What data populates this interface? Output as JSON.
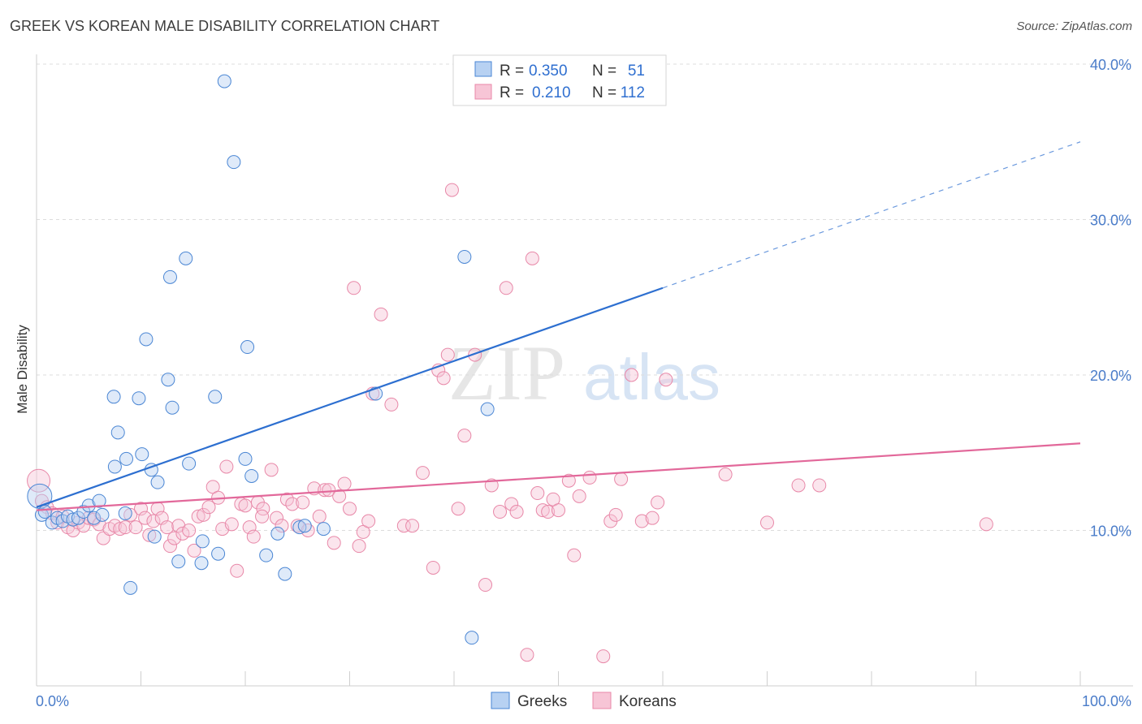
{
  "title": "GREEK VS KOREAN MALE DISABILITY CORRELATION CHART",
  "source": "Source: ZipAtlas.com",
  "watermark": {
    "zip": "ZIP",
    "atlas": "atlas"
  },
  "colors": {
    "greeks": "#4a86d4",
    "greeks_fill": "#b7d1f2",
    "greeks_line": "#2d6fd0",
    "koreans": "#e888a8",
    "koreans_fill": "#f7c5d6",
    "koreans_line": "#e2689a",
    "tick_text": "#4a7cc9",
    "grid": "#dcdcdc"
  },
  "legend_top": {
    "rows": [
      {
        "r_label": "R =",
        "r_value": "0.350",
        "n_label": "N =",
        "n_value": "51"
      },
      {
        "r_label": "R =",
        "r_value": "0.210",
        "n_label": "N =",
        "n_value": "112"
      }
    ]
  },
  "legend_bottom": {
    "greeks": "Greeks",
    "koreans": "Koreans"
  },
  "chart_data": {
    "type": "scatter",
    "title": "GREEK VS KOREAN MALE DISABILITY CORRELATION CHART",
    "xlabel": "",
    "ylabel": "Male Disability",
    "xlim": [
      0,
      100
    ],
    "ylim": [
      0,
      40.8
    ],
    "x_tick_labels": [
      "0.0%",
      "100.0%"
    ],
    "y_ticks": [
      10,
      20,
      30,
      40
    ],
    "y_tick_labels": [
      "10.0%",
      "20.0%",
      "30.0%",
      "40.0%"
    ],
    "grid": true,
    "legend_position": "top-center",
    "series": [
      {
        "name": "Greeks",
        "R": 0.35,
        "N": 51,
        "trend": {
          "x0": 0,
          "y0": 11.5,
          "x1": 60,
          "y1": 25.6,
          "dashed_to_x": 100,
          "dashed_to_y": 35.0
        },
        "points": [
          [
            0.3,
            12.2
          ],
          [
            0.5,
            11.0
          ],
          [
            0.8,
            11.2
          ],
          [
            1.5,
            10.5
          ],
          [
            2.0,
            10.8
          ],
          [
            2.5,
            10.6
          ],
          [
            3.0,
            10.9
          ],
          [
            3.5,
            10.7
          ],
          [
            4.0,
            10.8
          ],
          [
            4.5,
            11.2
          ],
          [
            5.0,
            11.6
          ],
          [
            5.5,
            10.8
          ],
          [
            6.0,
            11.9
          ],
          [
            6.3,
            11.0
          ],
          [
            7.4,
            18.6
          ],
          [
            7.5,
            14.1
          ],
          [
            7.8,
            16.3
          ],
          [
            8.5,
            11.1
          ],
          [
            8.6,
            14.6
          ],
          [
            9.0,
            6.3
          ],
          [
            9.8,
            18.5
          ],
          [
            10.1,
            14.9
          ],
          [
            10.5,
            22.3
          ],
          [
            11.0,
            13.9
          ],
          [
            11.3,
            9.6
          ],
          [
            11.6,
            13.1
          ],
          [
            12.6,
            19.7
          ],
          [
            12.8,
            26.3
          ],
          [
            13.0,
            17.9
          ],
          [
            13.6,
            8.0
          ],
          [
            14.3,
            27.5
          ],
          [
            14.6,
            14.3
          ],
          [
            15.9,
            9.3
          ],
          [
            15.8,
            7.9
          ],
          [
            17.1,
            18.6
          ],
          [
            17.4,
            8.5
          ],
          [
            18.0,
            38.9
          ],
          [
            18.9,
            33.7
          ],
          [
            20.0,
            14.6
          ],
          [
            20.2,
            21.8
          ],
          [
            20.6,
            13.5
          ],
          [
            22.0,
            8.4
          ],
          [
            23.1,
            9.8
          ],
          [
            23.8,
            7.2
          ],
          [
            25.2,
            10.2
          ],
          [
            25.7,
            10.3
          ],
          [
            27.5,
            10.1
          ],
          [
            32.5,
            18.8
          ],
          [
            41.0,
            27.6
          ],
          [
            41.7,
            3.1
          ],
          [
            43.2,
            17.8
          ]
        ]
      },
      {
        "name": "Koreans",
        "R": 0.21,
        "N": 112,
        "trend": {
          "x0": 0,
          "y0": 11.3,
          "x1": 100,
          "y1": 15.6
        },
        "points": [
          [
            0.2,
            13.2
          ],
          [
            0.5,
            11.9
          ],
          [
            1.0,
            11.5
          ],
          [
            1.5,
            11.1
          ],
          [
            2.0,
            10.5
          ],
          [
            2.5,
            10.9
          ],
          [
            3.0,
            10.2
          ],
          [
            3.5,
            10.0
          ],
          [
            4.0,
            10.5
          ],
          [
            4.5,
            10.3
          ],
          [
            5.0,
            10.8
          ],
          [
            5.5,
            10.7
          ],
          [
            6.0,
            10.4
          ],
          [
            6.4,
            9.5
          ],
          [
            7.0,
            10.1
          ],
          [
            7.5,
            10.3
          ],
          [
            8.0,
            10.1
          ],
          [
            8.5,
            10.2
          ],
          [
            9.0,
            11.0
          ],
          [
            9.5,
            10.2
          ],
          [
            10.0,
            11.4
          ],
          [
            10.4,
            10.8
          ],
          [
            10.8,
            9.7
          ],
          [
            11.2,
            10.6
          ],
          [
            11.6,
            11.4
          ],
          [
            12.0,
            10.8
          ],
          [
            12.5,
            10.2
          ],
          [
            12.8,
            9.0
          ],
          [
            13.2,
            9.5
          ],
          [
            13.6,
            10.3
          ],
          [
            14.0,
            9.8
          ],
          [
            14.6,
            10.0
          ],
          [
            15.1,
            8.7
          ],
          [
            15.5,
            10.9
          ],
          [
            16.0,
            11.0
          ],
          [
            16.5,
            11.5
          ],
          [
            16.9,
            12.8
          ],
          [
            17.4,
            12.1
          ],
          [
            17.8,
            10.1
          ],
          [
            18.2,
            14.1
          ],
          [
            18.7,
            10.4
          ],
          [
            19.2,
            7.4
          ],
          [
            19.6,
            11.7
          ],
          [
            20.0,
            11.6
          ],
          [
            20.4,
            10.2
          ],
          [
            20.8,
            9.6
          ],
          [
            21.2,
            11.8
          ],
          [
            21.7,
            11.4
          ],
          [
            22.5,
            13.9
          ],
          [
            23.0,
            10.8
          ],
          [
            23.5,
            10.3
          ],
          [
            24.0,
            12.0
          ],
          [
            24.5,
            11.7
          ],
          [
            25.0,
            10.3
          ],
          [
            25.5,
            11.8
          ],
          [
            26.0,
            10.0
          ],
          [
            26.6,
            12.7
          ],
          [
            27.1,
            10.9
          ],
          [
            27.6,
            12.6
          ],
          [
            28.0,
            12.6
          ],
          [
            28.5,
            9.2
          ],
          [
            29.0,
            12.2
          ],
          [
            29.5,
            13.0
          ],
          [
            30.0,
            11.4
          ],
          [
            30.4,
            25.6
          ],
          [
            30.9,
            9.0
          ],
          [
            31.3,
            9.9
          ],
          [
            31.8,
            10.6
          ],
          [
            32.2,
            18.8
          ],
          [
            33.0,
            23.9
          ],
          [
            34.0,
            18.1
          ],
          [
            35.2,
            10.3
          ],
          [
            36.0,
            10.3
          ],
          [
            37.0,
            13.7
          ],
          [
            38.0,
            7.6
          ],
          [
            38.5,
            20.3
          ],
          [
            39.0,
            19.8
          ],
          [
            39.4,
            21.3
          ],
          [
            39.8,
            31.9
          ],
          [
            40.4,
            11.4
          ],
          [
            41.0,
            16.1
          ],
          [
            42.0,
            21.3
          ],
          [
            43.0,
            6.5
          ],
          [
            43.6,
            12.9
          ],
          [
            44.4,
            11.2
          ],
          [
            45.0,
            25.6
          ],
          [
            45.5,
            11.7
          ],
          [
            46.0,
            11.2
          ],
          [
            47.0,
            2.0
          ],
          [
            47.5,
            27.5
          ],
          [
            48.0,
            12.4
          ],
          [
            48.5,
            11.3
          ],
          [
            49.0,
            11.2
          ],
          [
            49.5,
            12.0
          ],
          [
            50.0,
            11.3
          ],
          [
            51.0,
            13.2
          ],
          [
            51.5,
            8.4
          ],
          [
            52.0,
            12.2
          ],
          [
            53.0,
            13.4
          ],
          [
            54.3,
            1.9
          ],
          [
            55.0,
            10.6
          ],
          [
            55.5,
            11.0
          ],
          [
            56.0,
            13.3
          ],
          [
            57.0,
            20.0
          ],
          [
            58.0,
            10.6
          ],
          [
            59.0,
            10.8
          ],
          [
            59.5,
            11.8
          ],
          [
            60.3,
            19.7
          ],
          [
            66.0,
            13.6
          ],
          [
            70.0,
            10.5
          ],
          [
            73.0,
            12.9
          ],
          [
            75.0,
            12.9
          ],
          [
            91.0,
            10.4
          ],
          [
            21.6,
            10.9
          ]
        ]
      }
    ]
  }
}
